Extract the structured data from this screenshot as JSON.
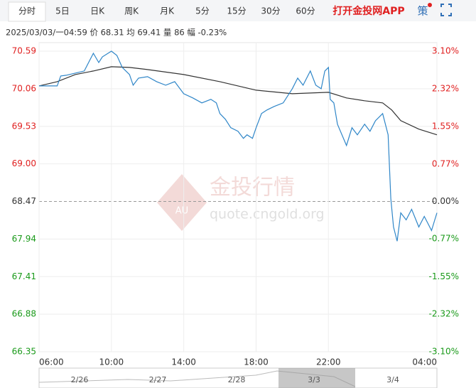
{
  "tabs": [
    "分时",
    "5日",
    "日K",
    "周K",
    "月K",
    "5分",
    "15分",
    "30分",
    "60分"
  ],
  "app_link": "打开金投网APP",
  "strategy": "策",
  "info": "2025/03/03/一04:59 价 68.31 均 69.41 量 86 幅 -0.23%",
  "watermark": {
    "brand": "金投行情",
    "site": "quote.cngold.org",
    "logo": "AU"
  },
  "navigator": {
    "dates": [
      "2/26",
      "2/27",
      "2/28",
      "3/3",
      "3/4"
    ]
  },
  "chart_data": {
    "type": "line",
    "xlim": [
      6,
      28
    ],
    "xticks": [
      {
        "value": 6,
        "label": "06:00"
      },
      {
        "value": 10,
        "label": "10:00"
      },
      {
        "value": 14,
        "label": "14:00"
      },
      {
        "value": 18,
        "label": "18:00"
      },
      {
        "value": 22,
        "label": "22:00"
      },
      {
        "value": 28,
        "label": "04:00"
      }
    ],
    "ylim": [
      66.35,
      70.59
    ],
    "yticks": [
      70.59,
      70.06,
      69.53,
      {
        "value": 69.0,
        "label": "69.00"
      },
      68.47,
      67.94,
      67.41,
      66.88,
      66.35
    ],
    "y2lim": [
      -3.1,
      3.1
    ],
    "y2ticks": [
      {
        "value": 3.1,
        "label": "3.10%"
      },
      {
        "value": 2.32,
        "label": "2.32%"
      },
      {
        "value": 1.55,
        "label": "1.55%"
      },
      {
        "value": 0.77,
        "label": "0.77%"
      },
      {
        "value": 0,
        "label": "0.00%"
      },
      {
        "value": -0.77,
        "label": "-0.77%"
      },
      {
        "value": -1.55,
        "label": "-1.55%"
      },
      {
        "value": -2.32,
        "label": "-2.32%"
      },
      {
        "value": -3.1,
        "label": "-3.10%"
      }
    ],
    "grid": true,
    "series": [
      {
        "color": "#2f86c8",
        "x": [
          6.0,
          6.5,
          7.0,
          7.2,
          7.5,
          8.0,
          8.5,
          9.0,
          9.3,
          9.5,
          10.0,
          10.3,
          10.6,
          11.0,
          11.2,
          11.5,
          12.0,
          12.5,
          13.0,
          13.5,
          14.0,
          14.5,
          15.0,
          15.5,
          15.8,
          16.0,
          16.3,
          16.6,
          17.0,
          17.3,
          17.5,
          17.8,
          18.0,
          18.3,
          18.6,
          19.0,
          19.5,
          20.0,
          20.3,
          20.6,
          21.0,
          21.3,
          21.6,
          21.8,
          22.0,
          22.1,
          22.3,
          22.5,
          23.0,
          23.3,
          23.6,
          24.0,
          24.3,
          24.6,
          25.0,
          25.3,
          25.45,
          25.6,
          25.8,
          26.0,
          26.3,
          26.6,
          27.0,
          27.3,
          27.5,
          27.7,
          28.0
        ],
        "values": [
          70.1,
          70.1,
          70.1,
          70.24,
          70.25,
          70.28,
          70.31,
          70.56,
          70.43,
          70.51,
          70.59,
          70.53,
          70.36,
          70.26,
          70.11,
          70.21,
          70.23,
          70.16,
          70.11,
          70.16,
          69.99,
          69.93,
          69.86,
          69.91,
          69.86,
          69.71,
          69.63,
          69.51,
          69.46,
          69.36,
          69.41,
          69.36,
          69.51,
          69.71,
          69.76,
          69.81,
          69.86,
          70.06,
          70.21,
          70.11,
          70.31,
          70.11,
          70.06,
          70.31,
          70.36,
          69.91,
          69.86,
          69.56,
          69.26,
          69.51,
          69.41,
          69.56,
          69.46,
          69.61,
          69.71,
          69.41,
          68.51,
          68.11,
          67.91,
          68.31,
          68.21,
          68.36,
          68.11,
          68.26,
          68.16,
          68.06,
          68.31
        ]
      },
      {
        "color": "#333333",
        "x": [
          6.0,
          7.0,
          8.0,
          9.0,
          10.0,
          11.0,
          12.0,
          14.0,
          16.0,
          18.0,
          20.0,
          22.0,
          23.0,
          24.0,
          25.0,
          25.5,
          26.0,
          27.0,
          28.0
        ],
        "values": [
          70.1,
          70.16,
          70.26,
          70.31,
          70.37,
          70.36,
          70.33,
          70.26,
          70.16,
          70.04,
          69.99,
          70.01,
          69.93,
          69.89,
          69.86,
          69.76,
          69.61,
          69.49,
          69.41
        ]
      }
    ]
  }
}
